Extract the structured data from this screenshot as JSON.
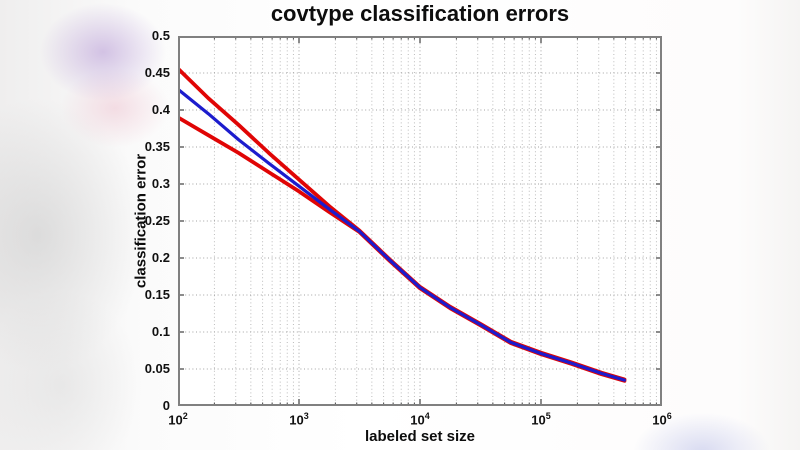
{
  "figure": {
    "title": "covtype classification errors",
    "xlabel": "labeled set size",
    "ylabel": "classification error"
  },
  "colors": {
    "red_series": "#e00505",
    "blue_series": "#1c1ccd",
    "axis_frame": "#808080",
    "tick_mark": "#5a5a5a",
    "grid_major": "#a3a3a3",
    "grid_minor": "#bcbcbc",
    "plot_background": "#ffffff",
    "text": "#0d0d0d"
  },
  "chart_data": {
    "type": "line",
    "title": "covtype classification errors",
    "xlabel": "labeled set size",
    "ylabel": "classification error",
    "x_scale": "log10",
    "xlim_log10": [
      2,
      6
    ],
    "ylim": [
      0,
      0.5
    ],
    "grid": "major and log-minor dotted gridlines, MATLAB style",
    "legend_position": "none",
    "x_tick_labels": [
      {
        "base": "10",
        "exp": "2",
        "log10": 2
      },
      {
        "base": "10",
        "exp": "3",
        "log10": 3
      },
      {
        "base": "10",
        "exp": "4",
        "log10": 4
      },
      {
        "base": "10",
        "exp": "5",
        "log10": 5
      },
      {
        "base": "10",
        "exp": "6",
        "log10": 6
      }
    ],
    "y_ticks": [
      {
        "value": 0,
        "label": "0"
      },
      {
        "value": 0.05,
        "label": "0.05"
      },
      {
        "value": 0.1,
        "label": "0.1"
      },
      {
        "value": 0.15,
        "label": "0.15"
      },
      {
        "value": 0.2,
        "label": "0.2"
      },
      {
        "value": 0.25,
        "label": "0.25"
      },
      {
        "value": 0.3,
        "label": "0.3"
      },
      {
        "value": 0.35,
        "label": "0.35"
      },
      {
        "value": 0.4,
        "label": "0.4"
      },
      {
        "value": 0.45,
        "label": "0.45"
      },
      {
        "value": 0.5,
        "label": "0.5"
      }
    ],
    "minor_grid_log_offsets": [
      0.301,
      0.477,
      0.602,
      0.699,
      0.778,
      0.845,
      0.903,
      0.954
    ],
    "series": [
      {
        "name": "red-upper-error-curve",
        "color": "#e00505",
        "width": 3.8,
        "x_log10": [
          2.0,
          2.25,
          2.5,
          2.75,
          3.0,
          3.25,
          3.5,
          3.75,
          4.0,
          4.25,
          4.5,
          4.75,
          5.0,
          5.25,
          5.5,
          5.69
        ],
        "y": [
          0.456,
          0.416,
          0.38,
          0.342,
          0.306,
          0.27,
          0.237,
          0.198,
          0.161,
          0.134,
          0.111,
          0.087,
          0.072,
          0.059,
          0.045,
          0.036
        ]
      },
      {
        "name": "red-lower-error-curve",
        "color": "#e00505",
        "width": 3.8,
        "x_log10": [
          2.0,
          2.25,
          2.5,
          2.75,
          3.0,
          3.25,
          3.5,
          3.75,
          4.0,
          4.25,
          4.5,
          4.75,
          5.0,
          5.25,
          5.5,
          5.69
        ],
        "y": [
          0.39,
          0.366,
          0.342,
          0.316,
          0.29,
          0.262,
          0.235,
          0.196,
          0.159,
          0.132,
          0.109,
          0.085,
          0.07,
          0.057,
          0.043,
          0.034
        ]
      },
      {
        "name": "blue-error-curve",
        "color": "#1c1ccd",
        "width": 3.2,
        "x_log10": [
          2.0,
          2.25,
          2.5,
          2.75,
          3.0,
          3.25,
          3.5,
          3.75,
          4.0,
          4.25,
          4.5,
          4.75,
          5.0,
          5.25,
          5.5,
          5.69
        ],
        "y": [
          0.428,
          0.395,
          0.36,
          0.328,
          0.297,
          0.266,
          0.236,
          0.197,
          0.16,
          0.133,
          0.11,
          0.086,
          0.071,
          0.058,
          0.044,
          0.035
        ]
      }
    ]
  }
}
